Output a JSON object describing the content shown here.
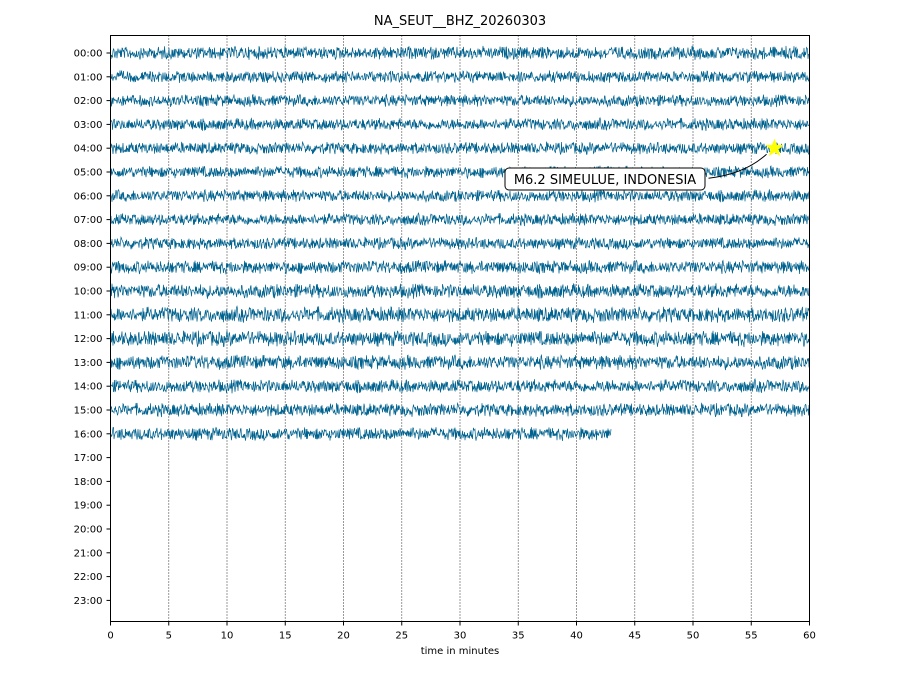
{
  "chart_data": {
    "type": "line",
    "title": "NA_SEUT__BHZ_20260303",
    "xlabel": "time in minutes",
    "ylabel": "",
    "xlim": [
      0,
      60
    ],
    "x_ticks": [
      0,
      5,
      10,
      15,
      20,
      25,
      30,
      35,
      40,
      45,
      50,
      55,
      60
    ],
    "y_tick_labels": [
      "00:00",
      "01:00",
      "02:00",
      "03:00",
      "04:00",
      "05:00",
      "06:00",
      "07:00",
      "08:00",
      "09:00",
      "10:00",
      "11:00",
      "12:00",
      "13:00",
      "14:00",
      "15:00",
      "16:00",
      "17:00",
      "18:00",
      "19:00",
      "20:00",
      "21:00",
      "22:00",
      "23:00"
    ],
    "grid": "vertical dotted",
    "trace_color": "#00628f",
    "traces": [
      {
        "hour": "00:00",
        "end_minute": 60,
        "amplitude": 0.55
      },
      {
        "hour": "01:00",
        "end_minute": 60,
        "amplitude": 0.5
      },
      {
        "hour": "02:00",
        "end_minute": 60,
        "amplitude": 0.5
      },
      {
        "hour": "03:00",
        "end_minute": 60,
        "amplitude": 0.5
      },
      {
        "hour": "04:00",
        "end_minute": 60,
        "amplitude": 0.5
      },
      {
        "hour": "05:00",
        "end_minute": 60,
        "amplitude": 0.5
      },
      {
        "hour": "06:00",
        "end_minute": 60,
        "amplitude": 0.5
      },
      {
        "hour": "07:00",
        "end_minute": 60,
        "amplitude": 0.5
      },
      {
        "hour": "08:00",
        "end_minute": 60,
        "amplitude": 0.5
      },
      {
        "hour": "09:00",
        "end_minute": 60,
        "amplitude": 0.55
      },
      {
        "hour": "10:00",
        "end_minute": 60,
        "amplitude": 0.6
      },
      {
        "hour": "11:00",
        "end_minute": 60,
        "amplitude": 0.65
      },
      {
        "hour": "12:00",
        "end_minute": 60,
        "amplitude": 0.65
      },
      {
        "hour": "13:00",
        "end_minute": 60,
        "amplitude": 0.6
      },
      {
        "hour": "14:00",
        "end_minute": 60,
        "amplitude": 0.55
      },
      {
        "hour": "15:00",
        "end_minute": 60,
        "amplitude": 0.55
      },
      {
        "hour": "16:00",
        "end_minute": 43,
        "amplitude": 0.55
      }
    ],
    "event": {
      "label": "M6.2 SIMEULUE, INDONESIA",
      "hour": "04:00",
      "minute": 57,
      "marker": "star",
      "marker_color": "#ffff00"
    }
  }
}
